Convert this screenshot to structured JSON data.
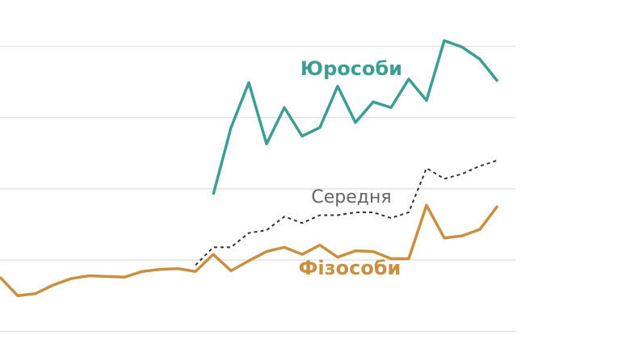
{
  "chart_data": {
    "type": "line",
    "x": [
      0,
      1,
      2,
      3,
      4,
      5,
      6,
      7,
      8,
      9,
      10,
      11,
      12,
      13,
      14,
      15,
      16,
      17,
      18,
      19,
      20,
      21,
      22,
      23,
      24,
      25,
      26,
      27,
      28
    ],
    "xlim": [
      0,
      29
    ],
    "ylim": [
      -0.2,
      4.65
    ],
    "yticks": [
      0,
      1,
      2,
      3,
      4
    ],
    "grid": true,
    "series": [
      {
        "name": "Юрособи",
        "color": "#3a9e94",
        "style": "solid",
        "values": [
          null,
          null,
          null,
          null,
          null,
          null,
          null,
          null,
          null,
          null,
          null,
          null,
          1.92,
          2.86,
          3.49,
          2.63,
          3.14,
          2.74,
          2.86,
          3.44,
          2.93,
          3.22,
          3.14,
          3.54,
          3.24,
          4.08,
          3.99,
          3.82,
          3.51
        ]
      },
      {
        "name": "Середня",
        "color": "#333333",
        "style": "dashed",
        "values": [
          null,
          null,
          null,
          null,
          null,
          null,
          null,
          null,
          null,
          null,
          null,
          0.93,
          1.18,
          1.18,
          1.38,
          1.42,
          1.61,
          1.52,
          1.63,
          1.63,
          1.67,
          1.67,
          1.59,
          1.67,
          2.29,
          2.14,
          2.21,
          2.32,
          2.4
        ]
      },
      {
        "name": "Фізособи",
        "color": "#c8903f",
        "style": "solid",
        "values": [
          0.76,
          0.5,
          0.53,
          0.65,
          0.74,
          0.78,
          0.77,
          0.76,
          0.84,
          0.87,
          0.88,
          0.84,
          1.08,
          0.85,
          0.99,
          1.12,
          1.18,
          1.08,
          1.21,
          1.04,
          1.13,
          1.12,
          1.02,
          1.02,
          1.77,
          1.31,
          1.34,
          1.43,
          1.76
        ]
      }
    ]
  }
}
